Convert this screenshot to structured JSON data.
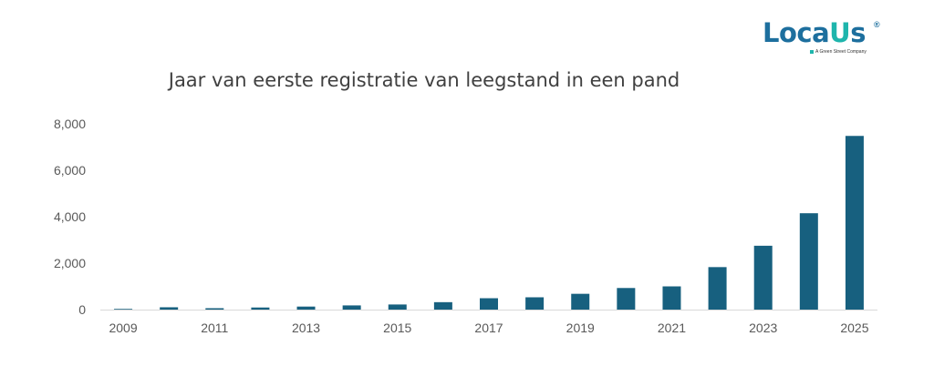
{
  "logo": {
    "word_main": "Loca",
    "word_accent": "U",
    "word_tail": "s",
    "registered": "®",
    "tagline": "A Green Street Company",
    "colors": {
      "primary": "#1d6f9e",
      "accent": "#1eb5ac"
    }
  },
  "chart_data": {
    "type": "bar",
    "title": "Jaar van eerste registratie van leegstand in een pand",
    "xlabel": "",
    "ylabel": "",
    "categories": [
      "2009",
      "2010",
      "2011",
      "2012",
      "2013",
      "2014",
      "2015",
      "2016",
      "2017",
      "2018",
      "2019",
      "2020",
      "2021",
      "2022",
      "2023",
      "2024",
      "2025"
    ],
    "x_tick_labels": [
      "2009",
      "2011",
      "2013",
      "2015",
      "2017",
      "2019",
      "2021",
      "2023",
      "2025"
    ],
    "values": [
      30,
      100,
      60,
      90,
      130,
      180,
      220,
      320,
      490,
      530,
      680,
      930,
      1000,
      1830,
      2750,
      4150,
      7480
    ],
    "ylim": [
      0,
      8000
    ],
    "y_ticks": [
      0,
      2000,
      4000,
      6000,
      8000
    ],
    "y_tick_labels": [
      "0",
      "2,000",
      "4,000",
      "6,000",
      "8,000"
    ],
    "grid": false,
    "legend": "none",
    "bar_color": "#17607f"
  }
}
